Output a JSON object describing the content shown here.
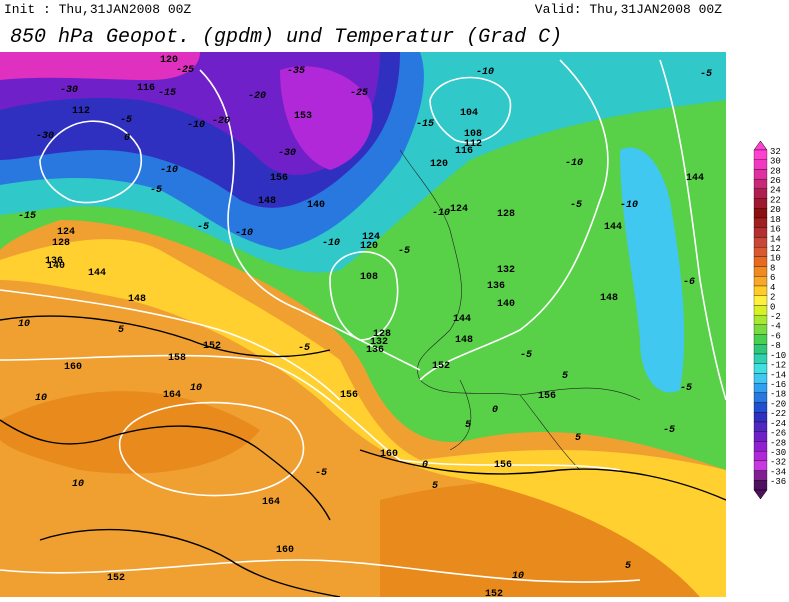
{
  "header": {
    "init": "Init : Thu,31JAN2008 00Z",
    "valid": "Valid: Thu,31JAN2008 00Z",
    "title": "850 hPa Geopot. (gpdm) und Temperatur (Grad C)"
  },
  "colorbar": {
    "labels": [
      32,
      30,
      28,
      26,
      24,
      22,
      20,
      18,
      16,
      14,
      12,
      10,
      8,
      6,
      4,
      2,
      0,
      -2,
      -4,
      -6,
      -8,
      -10,
      -12,
      -14,
      -16,
      -18,
      -20,
      -22,
      -24,
      -26,
      -28,
      -30,
      -32,
      -34,
      -36
    ],
    "colors": [
      "#ff40d0",
      "#f038c0",
      "#e030a0",
      "#c82878",
      "#b01e50",
      "#a01830",
      "#8c1010",
      "#a02020",
      "#b43030",
      "#c84838",
      "#d85830",
      "#e86a20",
      "#f08a20",
      "#f8a828",
      "#ffcc28",
      "#fff040",
      "#d8f028",
      "#a8e830",
      "#78dc40",
      "#48d050",
      "#30c878",
      "#30d0b0",
      "#40e0e0",
      "#40c8f0",
      "#30a0f0",
      "#2878e0",
      "#2050d0",
      "#3030c0",
      "#5028c0",
      "#7020c8",
      "#9020d0",
      "#b028d8",
      "#c838e0",
      "#802090",
      "#501060"
    ]
  },
  "map": {
    "geopotential_labels": [
      120,
      116,
      112,
      136,
      128,
      124,
      140,
      144,
      148,
      152,
      158,
      160,
      164,
      160,
      152,
      156,
      160,
      164,
      152,
      156,
      104,
      108,
      112,
      116,
      120,
      124,
      128,
      132,
      136,
      140,
      144,
      148,
      152,
      156,
      144,
      144,
      148,
      153,
      156,
      148,
      140,
      108,
      120,
      124,
      136,
      132,
      128
    ],
    "temperature_labels": [
      -30,
      -25,
      -20,
      -35,
      -30,
      -15,
      -10,
      -5,
      -25,
      -30,
      -20,
      -10,
      -15,
      -5,
      0,
      -10,
      -5,
      5,
      10,
      10,
      10,
      10,
      0,
      5,
      -5,
      5,
      10,
      -10,
      -15,
      -10,
      -5,
      -10,
      -5,
      0,
      5,
      -5,
      -10,
      -5,
      -10,
      -6,
      -5,
      5,
      5,
      -5,
      -5
    ]
  }
}
